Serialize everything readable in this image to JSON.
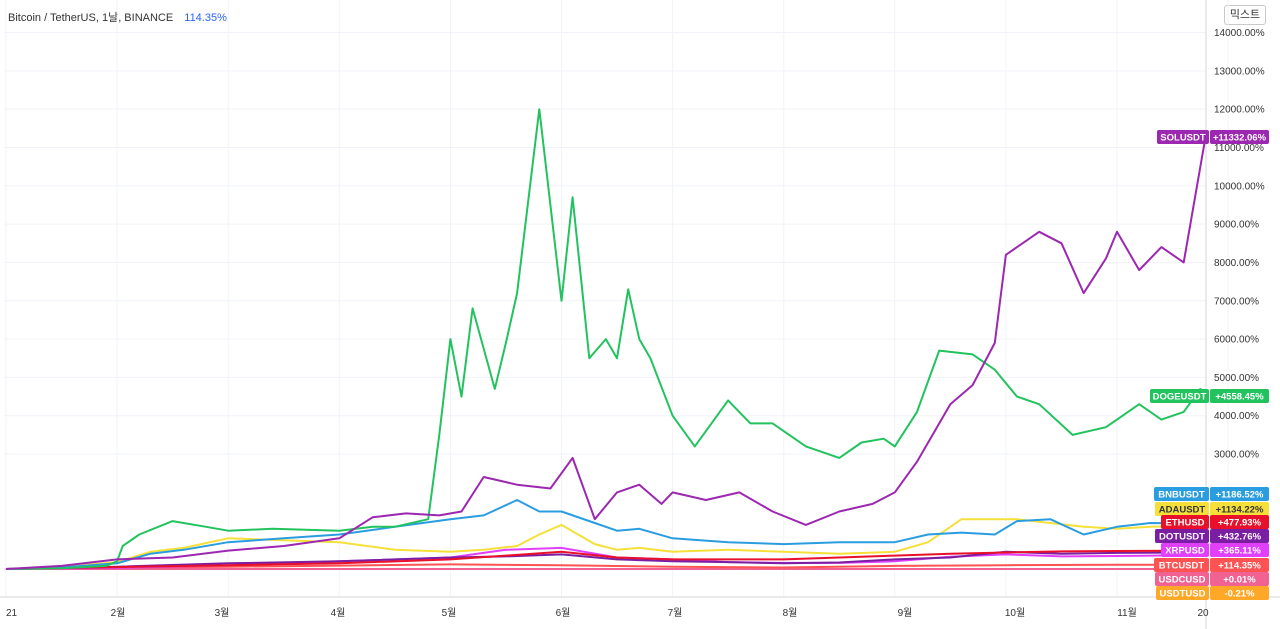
{
  "header": {
    "title": "Bitcoin / TetherUS, 1날, BINANCE",
    "change": "114.35%",
    "mix_button": "믹스트"
  },
  "chart_data": {
    "type": "line",
    "title": "Bitcoin / TetherUS, 1날, BINANCE",
    "y_unit": "% change",
    "ylim": [
      -300,
      15000
    ],
    "y_ticks": [
      "3000.00%",
      "4000.00%",
      "5000.00%",
      "6000.00%",
      "7000.00%",
      "8000.00%",
      "9000.00%",
      "10000.00%",
      "11000.00%",
      "12000.00%",
      "13000.00%",
      "14000.00%"
    ],
    "x_ticks": [
      "21",
      "2월",
      "3월",
      "4월",
      "5월",
      "6월",
      "7월",
      "8월",
      "9월",
      "10월",
      "11월",
      "20"
    ],
    "series": [
      {
        "name": "SOLUSDT",
        "label": "+11332.06%",
        "color": "#9c27b0",
        "x": [
          0,
          0.5,
          1.0,
          1.5,
          2.0,
          2.5,
          3.0,
          3.3,
          3.6,
          3.9,
          4.1,
          4.3,
          4.6,
          4.9,
          5.1,
          5.3,
          5.5,
          5.7,
          5.9,
          6.0,
          6.3,
          6.6,
          6.9,
          7.2,
          7.5,
          7.8,
          8.0,
          8.2,
          8.5,
          8.7,
          8.9,
          9.0,
          9.3,
          9.5,
          9.7,
          9.9,
          10.0,
          10.2,
          10.4,
          10.6,
          10.8
        ],
        "values": [
          0,
          80,
          250,
          300,
          480,
          600,
          800,
          1350,
          1450,
          1400,
          1500,
          2400,
          2200,
          2100,
          2900,
          1300,
          2000,
          2200,
          1700,
          2000,
          1800,
          2000,
          1500,
          1150,
          1500,
          1700,
          2000,
          2800,
          4300,
          4800,
          5900,
          8200,
          8800,
          8500,
          7200,
          8100,
          8800,
          7800,
          8400,
          8000,
          11332
        ]
      },
      {
        "name": "DOGEUSDT",
        "label": "+4558.45%",
        "color": "#22c35e",
        "x": [
          0,
          0.5,
          0.9,
          1.0,
          1.05,
          1.2,
          1.5,
          1.8,
          2.0,
          2.4,
          3.0,
          3.3,
          3.5,
          3.8,
          3.9,
          4.0,
          4.1,
          4.2,
          4.4,
          4.5,
          4.6,
          4.8,
          5.0,
          5.1,
          5.25,
          5.4,
          5.5,
          5.6,
          5.7,
          5.8,
          6.0,
          6.2,
          6.5,
          6.7,
          6.9,
          7.2,
          7.5,
          7.7,
          7.9,
          8.0,
          8.2,
          8.4,
          8.7,
          8.9,
          9.1,
          9.3,
          9.6,
          9.9,
          10.2,
          10.4,
          10.6,
          10.75,
          10.8
        ],
        "values": [
          0,
          20,
          80,
          200,
          600,
          900,
          1250,
          1100,
          1000,
          1050,
          1000,
          1100,
          1100,
          1300,
          3500,
          6000,
          4500,
          6800,
          4700,
          5900,
          7200,
          12000,
          7000,
          9700,
          5500,
          6000,
          5500,
          7300,
          6000,
          5500,
          4000,
          3200,
          4400,
          3800,
          3800,
          3200,
          2900,
          3300,
          3400,
          3200,
          4100,
          5700,
          5600,
          5200,
          4500,
          4300,
          3500,
          3700,
          4300,
          3900,
          4100,
          4700,
          4558
        ]
      },
      {
        "name": "BNBUSDT",
        "label": "+1186.52%",
        "color": "#2a9de0",
        "x": [
          0,
          0.5,
          1.0,
          1.3,
          1.6,
          2.0,
          2.5,
          3.0,
          3.5,
          4.0,
          4.3,
          4.6,
          4.8,
          5.0,
          5.3,
          5.5,
          5.7,
          6.0,
          6.5,
          7.0,
          7.5,
          8.0,
          8.3,
          8.6,
          8.9,
          9.1,
          9.4,
          9.7,
          10.0,
          10.3,
          10.8
        ],
        "values": [
          0,
          40,
          150,
          400,
          500,
          700,
          800,
          900,
          1100,
          1300,
          1400,
          1800,
          1500,
          1500,
          1200,
          1000,
          1050,
          800,
          700,
          650,
          700,
          700,
          900,
          950,
          900,
          1250,
          1300,
          900,
          1100,
          1200,
          1186
        ]
      },
      {
        "name": "ADAUSDT",
        "label": "+1134.22%",
        "color": "#f5e03a",
        "x": [
          0,
          0.5,
          1.0,
          1.3,
          1.6,
          2.0,
          2.5,
          3.0,
          3.5,
          4.0,
          4.3,
          4.6,
          4.8,
          5.0,
          5.3,
          5.5,
          5.7,
          6.0,
          6.5,
          7.0,
          7.5,
          8.0,
          8.3,
          8.6,
          8.9,
          9.1,
          9.4,
          9.7,
          10.0,
          10.3,
          10.8
        ],
        "values": [
          0,
          50,
          180,
          450,
          550,
          800,
          750,
          700,
          500,
          450,
          500,
          600,
          900,
          1150,
          650,
          500,
          550,
          450,
          500,
          450,
          400,
          450,
          700,
          1300,
          1300,
          1300,
          1200,
          1100,
          1050,
          1100,
          1134
        ]
      },
      {
        "name": "ETHUSD",
        "label": "+477.93%",
        "color": "#e8102a",
        "x": [
          0,
          1.0,
          2.0,
          3.0,
          4.0,
          5.0,
          5.5,
          6.0,
          6.5,
          7.0,
          7.5,
          8.0,
          8.5,
          9.0,
          9.5,
          10.0,
          10.8
        ],
        "values": [
          0,
          50,
          100,
          150,
          250,
          450,
          300,
          250,
          250,
          250,
          300,
          350,
          400,
          430,
          460,
          470,
          478
        ]
      },
      {
        "name": "DOTUSDT",
        "label": "+432.76%",
        "color": "#7b1fa2",
        "x": [
          0,
          1.0,
          2.0,
          3.0,
          4.0,
          4.5,
          5.0,
          5.5,
          6.0,
          6.5,
          7.0,
          7.5,
          8.0,
          8.5,
          9.0,
          9.5,
          10.0,
          10.8
        ],
        "values": [
          0,
          60,
          150,
          200,
          300,
          330,
          380,
          250,
          200,
          180,
          150,
          170,
          250,
          300,
          450,
          400,
          420,
          433
        ]
      },
      {
        "name": "XRPUSD",
        "label": "+365.11%",
        "color": "#e040fb",
        "x": [
          0,
          1.0,
          2.0,
          3.0,
          4.0,
          4.5,
          5.0,
          5.5,
          6.0,
          6.5,
          7.0,
          7.5,
          8.0,
          8.5,
          9.0,
          9.5,
          10.0,
          10.8
        ],
        "values": [
          0,
          30,
          100,
          200,
          300,
          500,
          550,
          300,
          250,
          180,
          160,
          160,
          200,
          320,
          380,
          330,
          340,
          365
        ]
      },
      {
        "name": "BTCUSDT",
        "label": "+114.35%",
        "color": "#ff5252",
        "x": [
          0,
          1.0,
          2.0,
          3.0,
          4.0,
          5.0,
          6.0,
          7.0,
          8.0,
          9.0,
          10.0,
          10.8
        ],
        "values": [
          0,
          40,
          60,
          90,
          120,
          100,
          60,
          40,
          80,
          100,
          110,
          114
        ]
      },
      {
        "name": "USDCUSD",
        "label": "+0.01%",
        "color": "#f06292",
        "x": [
          0,
          10.8
        ],
        "values": [
          0,
          0.01
        ]
      },
      {
        "name": "USDTUSD",
        "label": "-0.21%",
        "color": "#ffa726",
        "x": [
          0,
          10.8
        ],
        "values": [
          0,
          -0.21
        ]
      }
    ]
  }
}
